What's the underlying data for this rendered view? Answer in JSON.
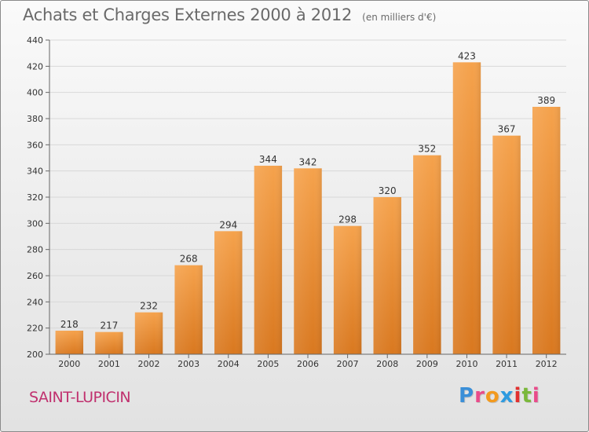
{
  "header": {
    "title": "Achats et Charges Externes 2000 à 2012",
    "subtitle": "(en milliers d'€)"
  },
  "footer": {
    "commune": "SAINT-LUPICIN",
    "logo_text": "Proxiti",
    "logo_letters": [
      {
        "ch": "P",
        "color": "#3a8fd8"
      },
      {
        "ch": "r",
        "color": "#e94b8a"
      },
      {
        "ch": "o",
        "color": "#f39a1e"
      },
      {
        "ch": "x",
        "color": "#2e9be0"
      },
      {
        "ch": "i",
        "color": "#e2302e"
      },
      {
        "ch": "t",
        "color": "#7ab83a"
      },
      {
        "ch": "i",
        "color": "#e94b8a"
      }
    ]
  },
  "colors": {
    "bar_top": "#f5a24c",
    "bar_bottom": "#d9781f",
    "grid": "#d8d8d8",
    "axis": "#666666",
    "commune": "#c0306e"
  },
  "chart_data": {
    "type": "bar",
    "title": "Achats et Charges Externes 2000 à 2012",
    "subtitle": "(en milliers d'€)",
    "categories": [
      "2000",
      "2001",
      "2002",
      "2003",
      "2004",
      "2005",
      "2006",
      "2007",
      "2008",
      "2009",
      "2010",
      "2011",
      "2012"
    ],
    "values": [
      218,
      217,
      232,
      268,
      294,
      344,
      342,
      298,
      320,
      352,
      423,
      367,
      389
    ],
    "ylim": [
      200,
      440
    ],
    "yticks": [
      200,
      220,
      240,
      260,
      280,
      300,
      320,
      340,
      360,
      380,
      400,
      420,
      440
    ],
    "grid": true,
    "data_labels": true,
    "legend": "none"
  }
}
